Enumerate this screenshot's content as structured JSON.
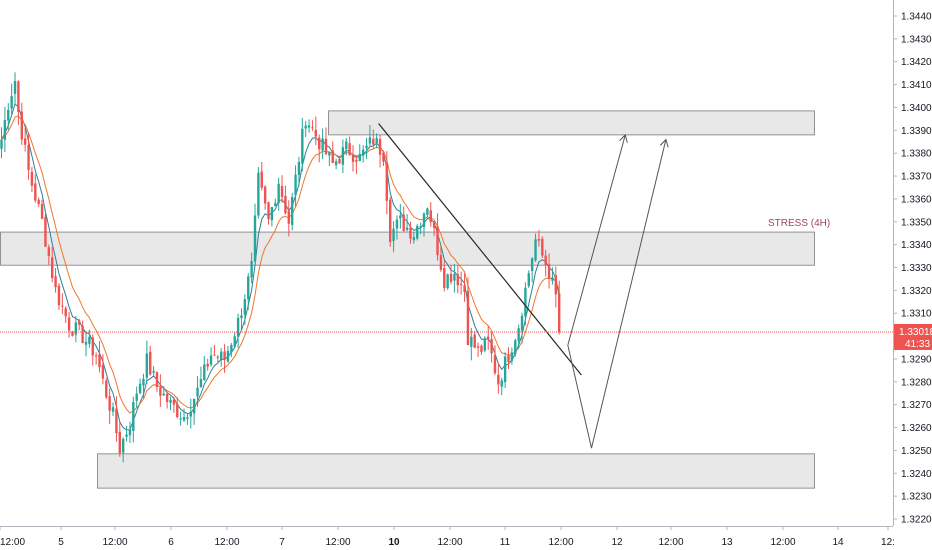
{
  "chart_data": {
    "type": "candlestick",
    "symbol_timeframe_note": "",
    "y_axis": {
      "min": 1.322,
      "max": 1.344,
      "ticks": [
        "1.34400",
        "1.34300",
        "1.34200",
        "1.34100",
        "1.34000",
        "1.33900",
        "1.33800",
        "1.33700",
        "1.33600",
        "1.33500",
        "1.33400",
        "1.33300",
        "1.33200",
        "1.33100",
        "1.33000",
        "1.32900",
        "1.32800",
        "1.32700",
        "1.32600",
        "1.32500",
        "1.32400",
        "1.32300",
        "1.32200"
      ]
    },
    "x_axis": {
      "labels": [
        "12:00",
        "5",
        "12:00",
        "6",
        "12:00",
        "7",
        "12:00",
        "10",
        "12:00",
        "11",
        "12:00",
        "12",
        "12:00",
        "13",
        "12:00",
        "14",
        "12:"
      ],
      "bold_labels": [
        "10"
      ]
    },
    "current_price": {
      "value": "1.33018",
      "countdown": "41:33",
      "level": 1.33018
    },
    "zones": [
      {
        "name": "supply-zone",
        "top": 1.33985,
        "bottom": 1.3388,
        "label": ""
      },
      {
        "name": "stress-zone",
        "top": 1.33455,
        "bottom": 1.3331,
        "label": "STRESS (4H)"
      },
      {
        "name": "demand-zone",
        "top": 1.32485,
        "bottom": 1.32335,
        "label": ""
      }
    ],
    "trendline": {
      "from": {
        "bar": 112,
        "price": 1.3393
      },
      "to": {
        "bar": 172,
        "price": 1.3283
      }
    },
    "projection_paths": [
      [
        {
          "bar": 168,
          "price": 1.3296
        },
        {
          "bar": 185,
          "price": 1.3388
        }
      ],
      [
        {
          "bar": 168,
          "price": 1.3296
        },
        {
          "bar": 175,
          "price": 1.3251
        },
        {
          "bar": 197,
          "price": 1.3386
        }
      ]
    ],
    "ma_series": [
      {
        "role": "fast",
        "color": "#2e7f96"
      },
      {
        "role": "slow",
        "color": "#f0762c"
      }
    ],
    "colors": {
      "up": "#26a69a",
      "down": "#ef5350",
      "zone_fill": "#e0e0e0",
      "zone_border": "#7a7a7a",
      "trend_line": "#2a2a2a",
      "price_line": "#ef5350",
      "stress_label": "#a0446a"
    },
    "price_keypoints": [
      [
        0,
        1.3386
      ],
      [
        2,
        1.3402
      ],
      [
        4,
        1.3412
      ],
      [
        5,
        1.3398
      ],
      [
        8,
        1.3372
      ],
      [
        12,
        1.335
      ],
      [
        16,
        1.332
      ],
      [
        20,
        1.3305
      ],
      [
        24,
        1.33
      ],
      [
        28,
        1.3292
      ],
      [
        30,
        1.328
      ],
      [
        33,
        1.3265
      ],
      [
        35,
        1.3251
      ],
      [
        38,
        1.3262
      ],
      [
        40,
        1.3276
      ],
      [
        43,
        1.3289
      ],
      [
        46,
        1.3278
      ],
      [
        50,
        1.327
      ],
      [
        54,
        1.3265
      ],
      [
        58,
        1.3276
      ],
      [
        62,
        1.3292
      ],
      [
        66,
        1.329
      ],
      [
        70,
        1.3306
      ],
      [
        74,
        1.333
      ],
      [
        76,
        1.3368
      ],
      [
        79,
        1.335
      ],
      [
        82,
        1.3368
      ],
      [
        85,
        1.335
      ],
      [
        88,
        1.3378
      ],
      [
        90,
        1.3396
      ],
      [
        94,
        1.3385
      ],
      [
        98,
        1.3375
      ],
      [
        102,
        1.3382
      ],
      [
        106,
        1.3378
      ],
      [
        110,
        1.3386
      ],
      [
        113,
        1.338
      ],
      [
        115,
        1.3345
      ],
      [
        118,
        1.335
      ],
      [
        122,
        1.3345
      ],
      [
        126,
        1.3358
      ],
      [
        128,
        1.3345
      ],
      [
        131,
        1.3325
      ],
      [
        134,
        1.3328
      ],
      [
        137,
        1.332
      ],
      [
        138,
        1.33
      ],
      [
        141,
        1.3293
      ],
      [
        144,
        1.3297
      ],
      [
        147,
        1.328
      ],
      [
        150,
        1.3292
      ],
      [
        153,
        1.3305
      ],
      [
        156,
        1.3328
      ],
      [
        158,
        1.3342
      ],
      [
        160,
        1.3335
      ],
      [
        162,
        1.3328
      ],
      [
        164,
        1.3317
      ],
      [
        165,
        1.33018
      ]
    ]
  }
}
